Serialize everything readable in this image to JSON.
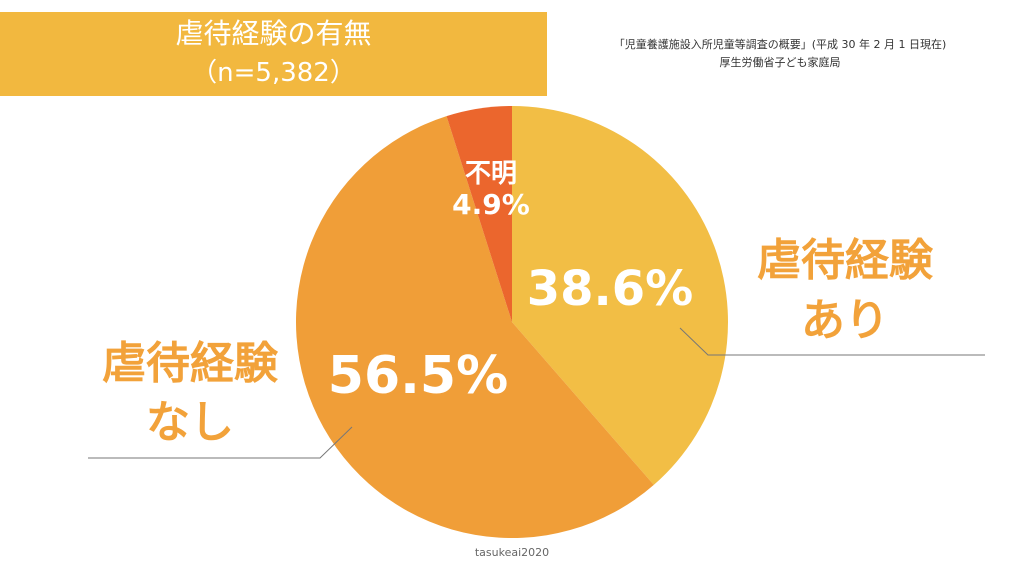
{
  "header": {
    "title": "虐待経験の有無",
    "sample": "（n=5,382）"
  },
  "source": {
    "line1": "「児童養護施設入所児童等調査の概要」(平成 30 年 2 月 1 日現在)",
    "line2": "厚生労働省子ども家庭局"
  },
  "credit": "tasukeai2020",
  "colors": {
    "title_bg": "#F2B83F",
    "slice_ari": "#F2BE45",
    "slice_nashi": "#F09E38",
    "slice_fumei": "#EB662D",
    "label_orange": "#F2A23A"
  },
  "chart_data": {
    "type": "pie",
    "title": "虐待経験の有無",
    "categories": [
      "虐待経験あり",
      "虐待経験なし",
      "不明"
    ],
    "values": [
      38.6,
      56.5,
      4.9
    ],
    "labels": {
      "ari_pct": "38.6%",
      "nashi_pct": "56.5%",
      "fumei_name": "不明",
      "fumei_pct": "4.9%",
      "ari_line1": "虐待経験",
      "ari_line2": "あり",
      "nashi_line1": "虐待経験",
      "nashi_line2": "なし"
    }
  }
}
